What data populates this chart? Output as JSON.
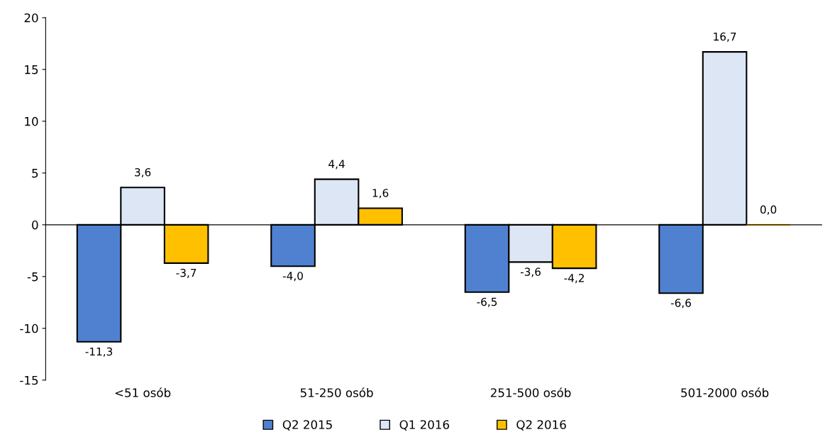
{
  "chart_data": {
    "type": "bar",
    "categories": [
      "<51 osób",
      "51-250 osób",
      "251-500 osób",
      "501-2000 osób"
    ],
    "series": [
      {
        "name": "Q2 2015",
        "color": "#4f81d0",
        "values": [
          -11.3,
          -4.0,
          -6.5,
          -6.6
        ],
        "value_labels": [
          "-11,3",
          "-4,0",
          "-6,5",
          "-6,6"
        ]
      },
      {
        "name": "Q1 2016",
        "color": "#dce6f5",
        "values": [
          3.6,
          4.4,
          -3.6,
          16.7
        ],
        "value_labels": [
          "3,6",
          "4,4",
          "-3,6",
          "16,7"
        ]
      },
      {
        "name": "Q2 2016",
        "color": "#ffc000",
        "values": [
          -3.7,
          1.6,
          -4.2,
          0.0
        ],
        "value_labels": [
          "-3,7",
          "1,6",
          "-4,2",
          "0,0"
        ]
      }
    ],
    "ylim": [
      -15,
      20
    ],
    "yticks": [
      -15,
      -10,
      -5,
      0,
      5,
      10,
      15,
      20
    ],
    "legend": "bottom"
  }
}
